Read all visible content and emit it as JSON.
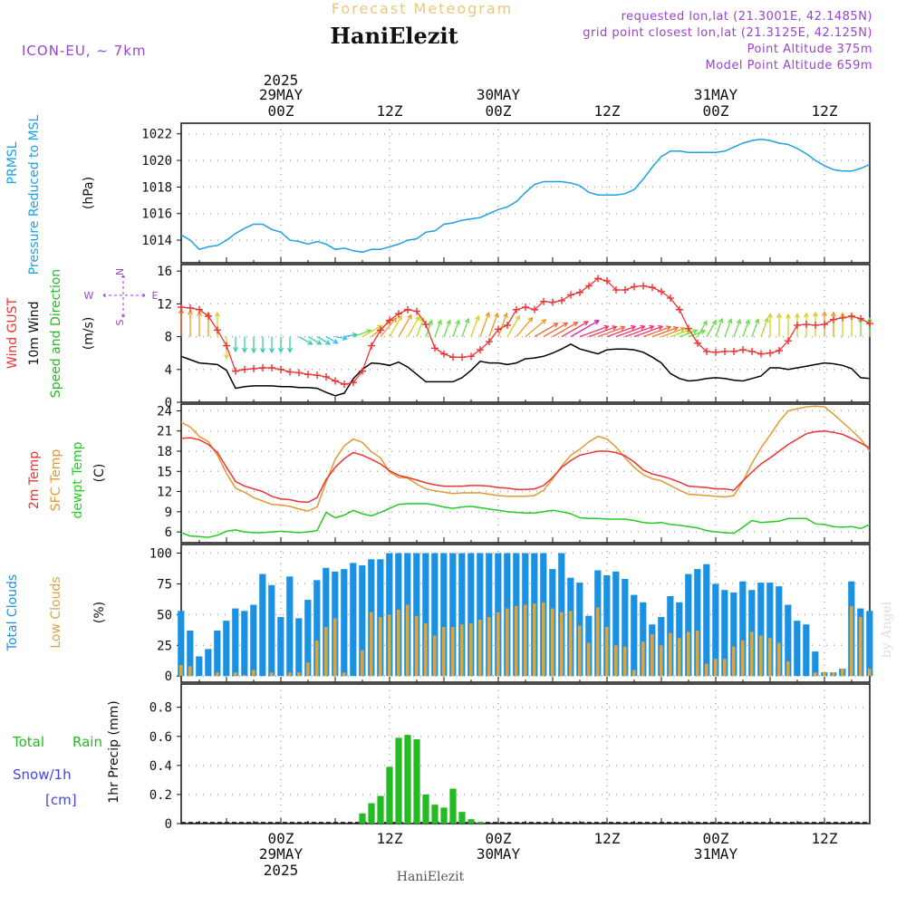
{
  "header": {
    "product_title": "Forecast Meteogram",
    "station": "HaniElezit",
    "model": "ICON-EU, ~ 7km",
    "requested": "requested lon,lat (21.3001E, 42.1485N)",
    "closest": "grid point closest lon,lat (21.3125E, 42.125N)",
    "point_alt": "Point Altitude 375m",
    "model_alt": "Model Point Altitude 659m"
  },
  "footer": {
    "station": "HaniElezit",
    "credit": "by Angel"
  },
  "colors": {
    "pressure": "#1ea0e8",
    "gust": "#ee3333",
    "wind": "#000000",
    "temp2m": "#ee3333",
    "sfc": "#e09a30",
    "dew": "#22cc22",
    "cloud_total": "#1e90e0",
    "cloud_low": "#d4a64a",
    "rain": "#22bb22",
    "snow_label": "#4444ee",
    "header_purple": "#9944cc",
    "title_gold": "#e8c880"
  },
  "time_axis": {
    "top_year": "2025",
    "date_labels": [
      {
        "hour": 0,
        "label": "29MAY"
      },
      {
        "hour": 24,
        "label": "30MAY"
      },
      {
        "hour": 48,
        "label": "31MAY"
      }
    ],
    "tick_labels": [
      {
        "hour": 0,
        "label": "00Z"
      },
      {
        "hour": 12,
        "label": "12Z"
      },
      {
        "hour": 24,
        "label": "00Z"
      },
      {
        "hour": 36,
        "label": "12Z"
      },
      {
        "hour": 48,
        "label": "00Z"
      },
      {
        "hour": 60,
        "label": "12Z"
      }
    ],
    "range_hours": [
      -11,
      65
    ]
  },
  "chart_data": [
    {
      "type": "line",
      "panel": "pressure",
      "labels": [
        "PRMSL",
        "Pressure Reduced to MSL",
        "(hPa)"
      ],
      "ylim": [
        1012.3,
        1022.8
      ],
      "yticks": [
        1014,
        1016,
        1018,
        1020,
        1022
      ],
      "x": [
        -11,
        -10,
        -9,
        -8,
        -7,
        -6,
        -5,
        -4,
        -3,
        -2,
        -1,
        0,
        1,
        2,
        3,
        4,
        5,
        6,
        7,
        8,
        9,
        10,
        11,
        12,
        13,
        14,
        15,
        16,
        17,
        18,
        19,
        20,
        21,
        22,
        23,
        24,
        25,
        26,
        27,
        28,
        29,
        30,
        31,
        32,
        33,
        34,
        35,
        36,
        37,
        38,
        39,
        40,
        41,
        42,
        43,
        44,
        45,
        46,
        47,
        48,
        49,
        50,
        51,
        52,
        53,
        54,
        55,
        56,
        57,
        58,
        59,
        60,
        61,
        62,
        63,
        64,
        65
      ],
      "series": [
        {
          "values": [
            1014.4,
            1014.0,
            1013.3,
            1013.5,
            1013.6,
            1014.0,
            1014.5,
            1014.9,
            1015.2,
            1015.2,
            1014.8,
            1014.6,
            1014.0,
            1013.9,
            1013.7,
            1013.9,
            1013.7,
            1013.3,
            1013.4,
            1013.2,
            1013.1,
            1013.3,
            1013.3,
            1013.5,
            1013.7,
            1014.0,
            1014.1,
            1014.6,
            1014.7,
            1015.2,
            1015.3,
            1015.5,
            1015.6,
            1015.7,
            1016.0,
            1016.3,
            1016.5,
            1016.9,
            1017.6,
            1018.2,
            1018.4,
            1018.4,
            1018.4,
            1018.3,
            1018.1,
            1017.6,
            1017.4,
            1017.4,
            1017.4,
            1017.5,
            1017.8,
            1018.6,
            1019.5,
            1020.3,
            1020.7,
            1020.7,
            1020.6,
            1020.6,
            1020.6,
            1020.6,
            1020.7,
            1021.0,
            1021.3,
            1021.5,
            1021.6,
            1021.5,
            1021.3,
            1021.2,
            1020.9,
            1020.5,
            1020.0,
            1019.6,
            1019.3,
            1019.2,
            1019.2,
            1019.4,
            1019.7
          ]
        }
      ]
    },
    {
      "type": "line",
      "panel": "wind",
      "labels": [
        "Wind GUST",
        "10m Wind",
        "Speed and Direction",
        "(m/s)"
      ],
      "compass": {
        "n": "N",
        "s": "S",
        "e": "E",
        "w": "W"
      },
      "ylim": [
        0,
        16.8
      ],
      "yticks": [
        0,
        4,
        8,
        12,
        16
      ],
      "x": [
        -11,
        -10,
        -9,
        -8,
        -7,
        -6,
        -5,
        -4,
        -3,
        -2,
        -1,
        0,
        1,
        2,
        3,
        4,
        5,
        6,
        7,
        8,
        9,
        10,
        11,
        12,
        13,
        14,
        15,
        16,
        17,
        18,
        19,
        20,
        21,
        22,
        23,
        24,
        25,
        26,
        27,
        28,
        29,
        30,
        31,
        32,
        33,
        34,
        35,
        36,
        37,
        38,
        39,
        40,
        41,
        42,
        43,
        44,
        45,
        46,
        47,
        48,
        49,
        50,
        51,
        52,
        53,
        54,
        55,
        56,
        57,
        58,
        59,
        60,
        61,
        62,
        63,
        64,
        65
      ],
      "series": [
        {
          "name": "Wind GUST",
          "values": [
            11.6,
            11.5,
            11.3,
            10.5,
            8.8,
            6.9,
            3.8,
            4.0,
            4.1,
            4.2,
            4.2,
            4.0,
            3.7,
            3.6,
            3.4,
            3.3,
            3.1,
            2.6,
            2.2,
            2.4,
            3.8,
            6.9,
            8.8,
            10.0,
            10.8,
            11.3,
            11.1,
            9.5,
            6.6,
            5.9,
            5.5,
            5.5,
            5.6,
            6.4,
            7.4,
            8.9,
            9.4,
            11.3,
            11.6,
            11.3,
            12.3,
            12.2,
            12.4,
            13.1,
            13.4,
            14.2,
            15.1,
            14.8,
            13.7,
            13.7,
            14.1,
            14.2,
            14.0,
            13.5,
            12.7,
            11.3,
            9.0,
            7.2,
            6.2,
            6.1,
            6.2,
            6.2,
            6.4,
            6.2,
            5.9,
            6.0,
            6.3,
            7.5,
            9.4,
            9.5,
            9.4,
            9.5,
            10.1,
            10.3,
            10.5,
            10.2,
            9.6
          ]
        },
        {
          "name": "10m Wind",
          "values": [
            5.6,
            5.2,
            4.8,
            4.7,
            4.6,
            3.9,
            1.7,
            1.9,
            2.0,
            2.0,
            2.0,
            1.9,
            1.9,
            1.8,
            1.8,
            1.7,
            1.2,
            0.8,
            1.1,
            2.9,
            4.0,
            4.8,
            4.7,
            4.5,
            4.9,
            4.3,
            3.4,
            2.5,
            2.5,
            2.5,
            2.5,
            3.0,
            3.9,
            5.0,
            4.8,
            4.8,
            4.6,
            4.8,
            5.3,
            5.4,
            5.6,
            6.0,
            6.5,
            7.1,
            6.5,
            6.2,
            5.9,
            6.4,
            6.5,
            6.5,
            6.4,
            6.1,
            5.5,
            4.8,
            3.5,
            2.9,
            2.6,
            2.7,
            2.9,
            3.0,
            2.9,
            2.7,
            2.6,
            2.9,
            3.2,
            4.2,
            4.2,
            4.0,
            4.2,
            4.4,
            4.6,
            4.8,
            4.7,
            4.5,
            4.1,
            3.0,
            2.9
          ]
        }
      ],
      "direction_deg": [
        180,
        180,
        180,
        180,
        180,
        0,
        0,
        0,
        0,
        0,
        0,
        0,
        0,
        300,
        300,
        300,
        300,
        280,
        260,
        250,
        240,
        230,
        220,
        210,
        210,
        210,
        200,
        200,
        200,
        200,
        200,
        200,
        200,
        200,
        200,
        200,
        210,
        220,
        230,
        240,
        240,
        240,
        240,
        240,
        250,
        250,
        250,
        250,
        250,
        250,
        250,
        250,
        250,
        250,
        250,
        250,
        250,
        210,
        210,
        200,
        200,
        200,
        200,
        200,
        200,
        180,
        180,
        180,
        180,
        180,
        180,
        180,
        180,
        180,
        180,
        180,
        180
      ]
    },
    {
      "type": "line",
      "panel": "temperature",
      "labels": [
        "2m Temp",
        "SFC Temp",
        "dewpt Temp",
        "(C)"
      ],
      "ylim": [
        4.4,
        25.0
      ],
      "yticks": [
        6,
        9,
        12,
        15,
        18,
        21,
        24
      ],
      "x": [
        -11,
        -10,
        -9,
        -8,
        -7,
        -6,
        -5,
        -4,
        -3,
        -2,
        -1,
        0,
        1,
        2,
        3,
        4,
        5,
        6,
        7,
        8,
        9,
        10,
        11,
        12,
        13,
        14,
        15,
        16,
        17,
        18,
        19,
        20,
        21,
        22,
        23,
        24,
        25,
        26,
        27,
        28,
        29,
        30,
        31,
        32,
        33,
        34,
        35,
        36,
        37,
        38,
        39,
        40,
        41,
        42,
        43,
        44,
        45,
        46,
        47,
        48,
        49,
        50,
        51,
        52,
        53,
        54,
        55,
        56,
        57,
        58,
        59,
        60,
        61,
        62,
        63,
        64,
        65
      ],
      "series": [
        {
          "name": "2m Temp",
          "values": [
            19.9,
            20.0,
            19.7,
            19.0,
            17.8,
            15.6,
            13.5,
            12.8,
            12.4,
            12.0,
            11.3,
            10.9,
            10.8,
            10.5,
            10.4,
            11.1,
            13.8,
            15.6,
            16.9,
            17.8,
            17.4,
            16.8,
            16.1,
            15.1,
            14.4,
            14.1,
            13.7,
            13.3,
            13.0,
            12.8,
            12.8,
            12.8,
            12.9,
            12.9,
            12.8,
            12.6,
            12.5,
            12.3,
            12.3,
            12.4,
            12.9,
            14.1,
            15.6,
            16.6,
            17.4,
            17.7,
            18.0,
            18.0,
            17.8,
            17.3,
            16.4,
            15.2,
            14.6,
            14.3,
            13.9,
            13.4,
            12.8,
            12.7,
            12.6,
            12.4,
            12.4,
            12.2,
            13.6,
            14.9,
            16.1,
            17.0,
            18.0,
            19.0,
            19.8,
            20.6,
            20.9,
            21.0,
            20.8,
            20.5,
            19.9,
            19.2,
            18.5
          ]
        },
        {
          "name": "SFC Temp",
          "values": [
            22.3,
            21.6,
            20.2,
            19.4,
            17.4,
            14.7,
            12.5,
            11.9,
            11.1,
            10.6,
            10.1,
            10.0,
            9.8,
            9.4,
            9.1,
            9.7,
            13.4,
            16.8,
            18.8,
            19.8,
            19.3,
            17.9,
            17.0,
            14.9,
            14.1,
            14.0,
            13.1,
            12.4,
            12.1,
            11.9,
            11.7,
            11.8,
            11.8,
            11.8,
            11.6,
            11.4,
            11.3,
            11.3,
            11.3,
            11.4,
            12.2,
            13.9,
            15.8,
            17.4,
            18.3,
            19.4,
            20.2,
            19.8,
            18.6,
            17.0,
            15.6,
            14.5,
            13.9,
            13.6,
            12.9,
            12.2,
            11.6,
            11.5,
            11.4,
            11.3,
            11.2,
            11.4,
            13.5,
            16.2,
            18.5,
            20.4,
            22.4,
            24.0,
            24.3,
            24.6,
            24.7,
            24.6,
            23.5,
            22.3,
            21.1,
            19.8,
            18.0
          ]
        },
        {
          "name": "dewpt Temp",
          "values": [
            5.9,
            5.4,
            5.3,
            5.2,
            5.5,
            6.1,
            6.3,
            6.0,
            5.9,
            5.9,
            6.0,
            6.1,
            6.0,
            5.9,
            6.0,
            6.2,
            8.9,
            8.1,
            8.5,
            9.2,
            8.7,
            8.4,
            8.9,
            9.5,
            10.1,
            10.2,
            10.2,
            10.2,
            10.0,
            9.7,
            9.5,
            9.7,
            9.8,
            9.6,
            9.4,
            9.2,
            9.0,
            8.9,
            8.8,
            8.8,
            9.0,
            9.2,
            9.0,
            8.7,
            8.1,
            8.0,
            8.0,
            7.9,
            7.9,
            7.9,
            7.7,
            7.4,
            7.3,
            7.4,
            7.1,
            7.0,
            6.8,
            6.6,
            6.2,
            6.0,
            5.9,
            5.8,
            6.7,
            7.7,
            7.4,
            7.5,
            7.6,
            8.0,
            8.0,
            8.0,
            7.2,
            7.1,
            6.8,
            6.7,
            6.8,
            6.5,
            7.1
          ]
        }
      ]
    },
    {
      "type": "bar",
      "panel": "clouds",
      "labels": [
        "Total Clouds",
        "Low Clouds",
        "(%)"
      ],
      "ylim": [
        -5,
        107
      ],
      "yticks": [
        0,
        25,
        50,
        75,
        100
      ],
      "x": [
        -11,
        -10,
        -9,
        -8,
        -7,
        -6,
        -5,
        -4,
        -3,
        -2,
        -1,
        0,
        1,
        2,
        3,
        4,
        5,
        6,
        7,
        8,
        9,
        10,
        11,
        12,
        13,
        14,
        15,
        16,
        17,
        18,
        19,
        20,
        21,
        22,
        23,
        24,
        25,
        26,
        27,
        28,
        29,
        30,
        31,
        32,
        33,
        34,
        35,
        36,
        37,
        38,
        39,
        40,
        41,
        42,
        43,
        44,
        45,
        46,
        47,
        48,
        49,
        50,
        51,
        52,
        53,
        54,
        55,
        56,
        57,
        58,
        59,
        60,
        61,
        62,
        63,
        64,
        65
      ],
      "series": [
        {
          "name": "Total Clouds",
          "values": [
            53,
            37,
            16,
            22,
            37,
            45,
            55,
            53,
            58,
            83,
            74,
            48,
            81,
            47,
            62,
            78,
            88,
            85,
            87,
            92,
            90,
            95,
            95,
            100,
            100,
            100,
            100,
            100,
            100,
            100,
            100,
            100,
            100,
            100,
            100,
            100,
            100,
            100,
            100,
            100,
            100,
            87,
            100,
            80,
            76,
            49,
            86,
            82,
            85,
            79,
            66,
            60,
            42,
            48,
            65,
            60,
            83,
            87,
            91,
            75,
            70,
            68,
            77,
            70,
            76,
            76,
            73,
            58,
            45,
            42,
            20,
            3,
            3,
            6,
            77,
            55,
            53
          ]
        },
        {
          "name": "Low Clouds",
          "values": [
            9,
            8,
            0,
            0,
            3,
            0,
            3,
            1,
            5,
            0,
            3,
            0,
            3,
            3,
            11,
            29,
            40,
            47,
            3,
            0,
            21,
            52,
            48,
            50,
            54,
            58,
            49,
            43,
            33,
            40,
            40,
            42,
            43,
            46,
            48,
            52,
            55,
            57,
            58,
            59,
            60,
            55,
            52,
            53,
            41,
            27,
            56,
            40,
            25,
            24,
            5,
            28,
            34,
            25,
            35,
            31,
            36,
            37,
            10,
            14,
            14,
            24,
            29,
            36,
            33,
            31,
            27,
            12,
            0,
            0,
            3,
            3,
            3,
            6,
            57,
            48,
            6
          ]
        }
      ]
    },
    {
      "type": "bar",
      "panel": "precip",
      "labels": [
        "1hr Precip (mm)"
      ],
      "side_labels": {
        "rain_left": "Total",
        "rain_right": "Rain",
        "snow": "Snow/1h",
        "unit": "[cm]"
      },
      "ylim": [
        0,
        0.96
      ],
      "yticks": [
        0,
        0.2,
        0.4,
        0.6,
        0.8
      ],
      "x": [
        9,
        10,
        11,
        12,
        13,
        14,
        15,
        16,
        17,
        18,
        19,
        20,
        21,
        22
      ],
      "series": [
        {
          "name": "Total Rain",
          "values": [
            0.07,
            0.14,
            0.19,
            0.39,
            0.59,
            0.61,
            0.58,
            0.2,
            0.13,
            0.11,
            0.24,
            0.08,
            0.03,
            0.01
          ]
        }
      ]
    }
  ]
}
